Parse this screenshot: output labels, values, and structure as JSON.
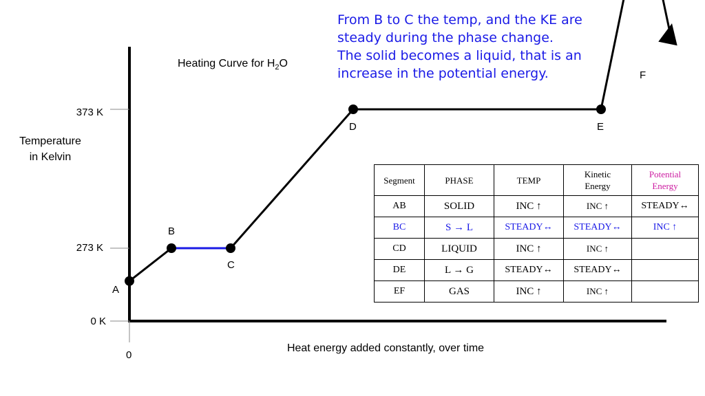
{
  "note": {
    "lines": [
      "From B to C the temp, and the KE are",
      "steady during the phase change.",
      "The solid becomes a liquid, that is an",
      "increase in the potential energy."
    ],
    "color": "#1a1ae6"
  },
  "chart_data": {
    "type": "line",
    "title_main": "Heating Curve for H",
    "title_sub": "2",
    "title_tail": "O",
    "ylabel_line1": "Temperature",
    "ylabel_line2": "in Kelvin",
    "xlabel": "Heat energy added constantly, over time",
    "y_ticks": [
      {
        "label": "373 K",
        "value": 373
      },
      {
        "label": "273 K",
        "value": 273
      },
      {
        "label": "0 K",
        "value": 0
      }
    ],
    "x_tick": "0",
    "points": [
      {
        "label": "A",
        "x": 0,
        "y": 150
      },
      {
        "label": "B",
        "x": 1,
        "y": 273
      },
      {
        "label": "C",
        "x": 2,
        "y": 273
      },
      {
        "label": "D",
        "x": 5,
        "y": 373
      },
      {
        "label": "E",
        "x": 9,
        "y": 373
      },
      {
        "label": "F",
        "x": 10,
        "y": 520
      }
    ],
    "highlight_segment": "BC",
    "highlight_color": "#1a1ae6",
    "line_color": "#000000"
  },
  "table": {
    "headers": {
      "segment": "Segment",
      "phase": "PHASE",
      "temp": "TEMP",
      "ke_line1": "Kinetic",
      "ke_line2": "Energy",
      "pe_line1": "Potential",
      "pe_line2": "Energy"
    },
    "rows": [
      {
        "segment": "AB",
        "phase": "SOLID",
        "temp": "INC ↑",
        "ke": "INC ↑",
        "pe": "STEADY↔"
      },
      {
        "segment": "BC",
        "phase": "S → L",
        "temp": "STEADY↔",
        "ke": "STEADY↔",
        "pe": "INC ↑"
      },
      {
        "segment": "CD",
        "phase": "LIQUID",
        "temp": "INC ↑",
        "ke": "INC ↑",
        "pe": ""
      },
      {
        "segment": "DE",
        "phase": "L → G",
        "temp": "STEADY↔",
        "ke": "STEADY↔",
        "pe": ""
      },
      {
        "segment": "EF",
        "phase": "GAS",
        "temp": "INC ↑",
        "ke": "INC ↑",
        "pe": ""
      }
    ],
    "highlight_color": "#1a1ae6",
    "pe_header_color": "#cc1aa0"
  }
}
